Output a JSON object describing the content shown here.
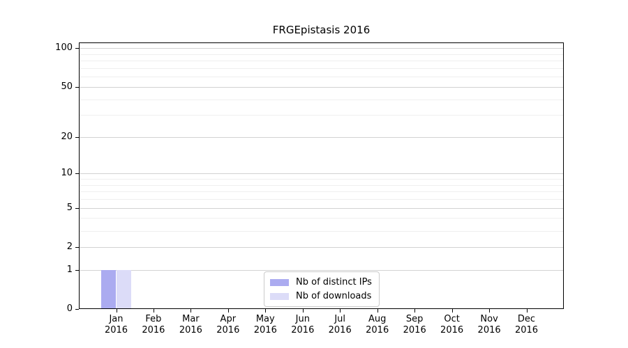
{
  "chart_data": {
    "type": "bar",
    "title": "FRGEpistasis 2016",
    "categories": [
      "Jan 2016",
      "Feb 2016",
      "Mar 2016",
      "Apr 2016",
      "May 2016",
      "Jun 2016",
      "Jul 2016",
      "Aug 2016",
      "Sep 2016",
      "Oct 2016",
      "Nov 2016",
      "Dec 2016"
    ],
    "series": [
      {
        "name": "Nb of distinct IPs",
        "color": "#ababf0",
        "values": [
          1,
          0,
          0,
          0,
          0,
          0,
          0,
          0,
          0,
          0,
          0,
          0
        ]
      },
      {
        "name": "Nb of downloads",
        "color": "#dcdcf8",
        "values": [
          1,
          0,
          0,
          0,
          0,
          0,
          0,
          0,
          0,
          0,
          0,
          0
        ]
      }
    ],
    "xlabel": "",
    "ylabel": "",
    "y_scale": "log1p",
    "y_ticks": [
      0,
      1,
      2,
      5,
      10,
      20,
      50,
      100
    ],
    "y_minor_gridlines": [
      3,
      4,
      6,
      7,
      8,
      9,
      30,
      40,
      60,
      70,
      80,
      90
    ],
    "ylim": [
      0,
      111
    ],
    "grid": true,
    "legend": {
      "position": "lower center",
      "entries": [
        "Nb of distinct IPs",
        "Nb of downloads"
      ]
    }
  },
  "colors": {
    "major_grid": "#d2d2d2",
    "minor_grid": "#efefef",
    "axis": "#000000",
    "background": "#ffffff"
  }
}
